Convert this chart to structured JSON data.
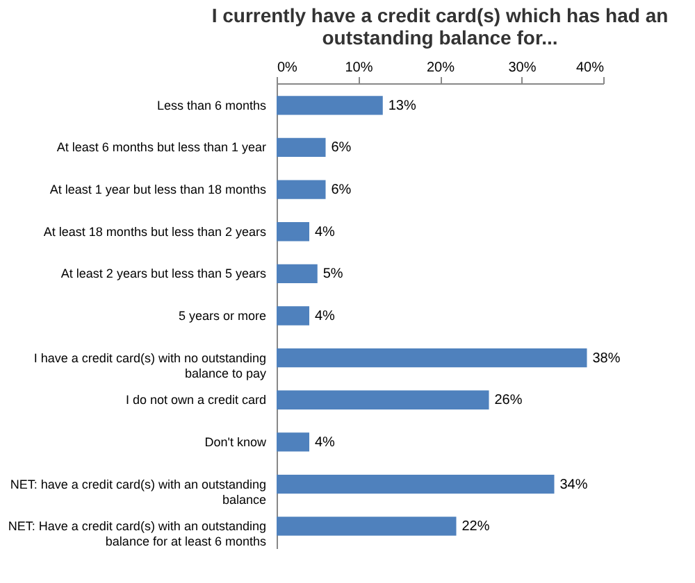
{
  "chart_data": {
    "type": "bar",
    "orientation": "horizontal",
    "title": "I currently have a credit card(s) which has had an outstanding balance for...",
    "categories": [
      "Less than 6 months",
      "At least 6 months but less than 1 year",
      "At least 1 year but less than 18 months",
      "At least 18 months but less than 2 years",
      "At least 2 years but less than 5 years",
      "5 years or more",
      "I have a credit card(s) with no outstanding balance to pay",
      "I do not own a credit card",
      "Don't know",
      "NET: have a credit card(s) with an outstanding balance",
      "NET: Have a credit card(s) with an outstanding balance for at least 6 months"
    ],
    "values": [
      13,
      6,
      6,
      4,
      5,
      4,
      38,
      26,
      4,
      34,
      22
    ],
    "xlim": [
      0,
      40
    ],
    "xticks": [
      {
        "value": 0,
        "label": "0%"
      },
      {
        "value": 10,
        "label": "10%"
      },
      {
        "value": 20,
        "label": "20%"
      },
      {
        "value": 30,
        "label": "30%"
      },
      {
        "value": 40,
        "label": "40%"
      }
    ],
    "value_labels": [
      "13%",
      "6%",
      "6%",
      "4%",
      "5%",
      "4%",
      "38%",
      "26%",
      "4%",
      "34%",
      "22%"
    ],
    "color": "#4f81bd"
  }
}
